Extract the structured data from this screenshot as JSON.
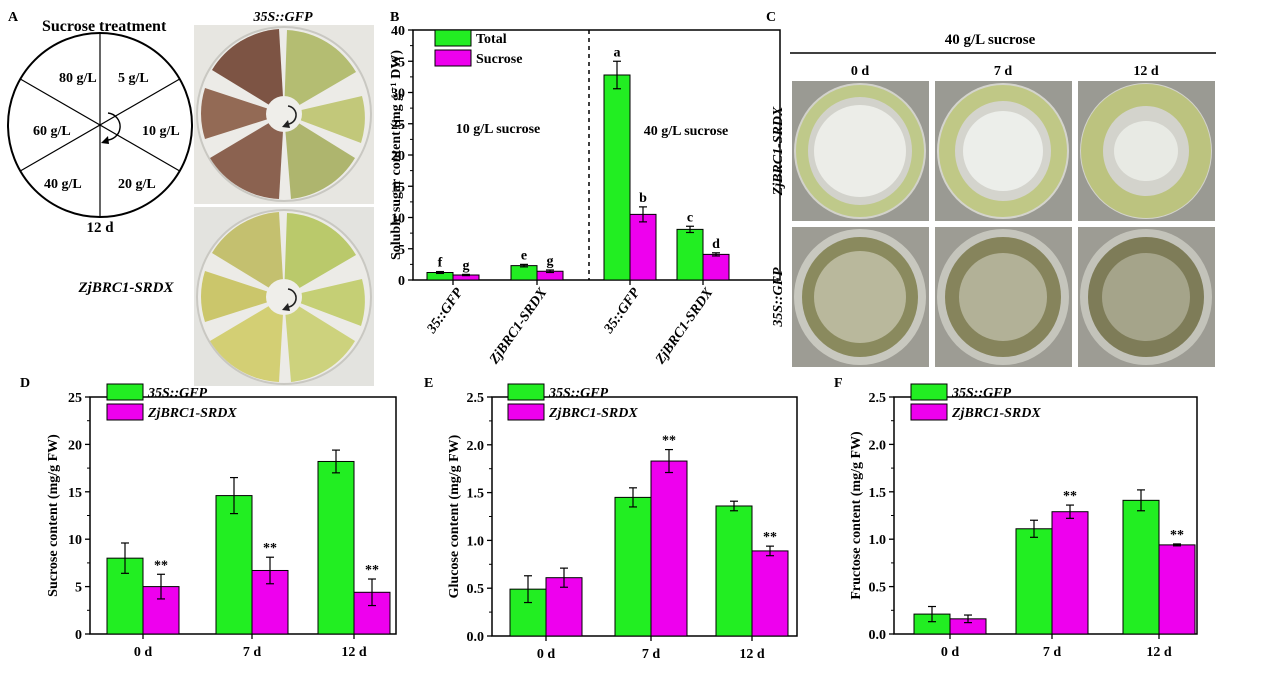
{
  "colors": {
    "green": "#22ee22",
    "magenta": "#ee00ee",
    "axis": "#000000",
    "dish_light": "#f2f2ee",
    "callus_yellow": "#c8cf7a",
    "callus_brown": "#8a5a46",
    "culture_dark": "#7e7c58"
  },
  "panel_a": {
    "letter": "A",
    "title": "Sucrose treatment",
    "wheel_labels": [
      "80 g/L",
      "5 g/L",
      "60 g/L",
      "10 g/L",
      "40 g/L",
      "20 g/L"
    ],
    "wheel_caption": "12 d",
    "photo_top_label": "35S::GFP",
    "photo_bottom_label": "ZjBRC1-SRDX"
  },
  "panel_c": {
    "letter": "C",
    "header": "40 g/L sucrose",
    "columns": [
      "0 d",
      "7 d",
      "12 d"
    ],
    "rows": [
      "ZjBRC1-SRDX",
      "35S::GFP"
    ]
  },
  "chart_data": [
    {
      "id": "B",
      "letter": "B",
      "type": "bar",
      "ylabel": "Soluble sugar content (mg g⁻¹ DW)",
      "ylim": [
        0,
        40
      ],
      "yticks": [
        "0",
        "5",
        "10",
        "15",
        "20",
        "25",
        "30",
        "35",
        "40"
      ],
      "categories": [
        "35::GFP",
        "ZjBRC1-SRDX",
        "35::GFP",
        "ZjBRC1-SRDX"
      ],
      "group_labels": [
        "10 g/L sucrose",
        "40 g/L sucrose"
      ],
      "legend": [
        "Total",
        "Sucrose"
      ],
      "legend_position": "top-left",
      "series": [
        {
          "name": "Total",
          "values": [
            1.2,
            2.3,
            32.8,
            8.1
          ],
          "errors": [
            0.15,
            0.2,
            2.2,
            0.5
          ],
          "letters": [
            "f",
            "e",
            "a",
            "c"
          ]
        },
        {
          "name": "Sucrose",
          "values": [
            0.8,
            1.4,
            10.5,
            4.1
          ],
          "errors": [
            0.1,
            0.2,
            1.2,
            0.25
          ],
          "letters": [
            "g",
            "g",
            "b",
            "d"
          ]
        }
      ]
    },
    {
      "id": "D",
      "letter": "D",
      "type": "bar",
      "ylabel": "Sucrose content (mg/g FW)",
      "ylim": [
        0,
        25
      ],
      "yticks": [
        "0",
        "5",
        "10",
        "15",
        "20",
        "25"
      ],
      "categories": [
        "0 d",
        "7 d",
        "12 d"
      ],
      "legend": [
        "35S::GFP",
        "ZjBRC1-SRDX"
      ],
      "legend_position": "top-left",
      "series": [
        {
          "name": "35S::GFP",
          "values": [
            8.0,
            14.6,
            18.2
          ],
          "errors": [
            1.6,
            1.9,
            1.2
          ],
          "marks": [
            "",
            "",
            ""
          ]
        },
        {
          "name": "ZjBRC1-SRDX",
          "values": [
            5.0,
            6.7,
            4.4
          ],
          "errors": [
            1.3,
            1.4,
            1.4
          ],
          "marks": [
            "**",
            "**",
            "**"
          ]
        }
      ]
    },
    {
      "id": "E",
      "letter": "E",
      "type": "bar",
      "ylabel": "Glucose content (mg/g FW)",
      "ylim": [
        0,
        2.5
      ],
      "yticks": [
        "0.0",
        "0.5",
        "1.0",
        "1.5",
        "2.0",
        "2.5"
      ],
      "categories": [
        "0 d",
        "7 d",
        "12 d"
      ],
      "legend": [
        "35S::GFP",
        "ZjBRC1-SRDX"
      ],
      "legend_position": "top-left",
      "series": [
        {
          "name": "35S::GFP",
          "values": [
            0.49,
            1.45,
            1.36
          ],
          "errors": [
            0.14,
            0.1,
            0.05
          ],
          "marks": [
            "",
            "",
            ""
          ]
        },
        {
          "name": "ZjBRC1-SRDX",
          "values": [
            0.61,
            1.83,
            0.89
          ],
          "errors": [
            0.1,
            0.12,
            0.05
          ],
          "marks": [
            "",
            "**",
            "**"
          ]
        }
      ]
    },
    {
      "id": "F",
      "letter": "F",
      "type": "bar",
      "ylabel": "Fructose content (mg/g FW)",
      "ylim": [
        0,
        2.5
      ],
      "yticks": [
        "0.0",
        "0.5",
        "1.0",
        "1.5",
        "2.0",
        "2.5"
      ],
      "categories": [
        "0 d",
        "7 d",
        "12 d"
      ],
      "legend": [
        "35S::GFP",
        "ZjBRC1-SRDX"
      ],
      "legend_position": "top-left",
      "series": [
        {
          "name": "35S::GFP",
          "values": [
            0.21,
            1.11,
            1.41
          ],
          "errors": [
            0.08,
            0.09,
            0.11
          ],
          "marks": [
            "",
            "",
            ""
          ]
        },
        {
          "name": "ZjBRC1-SRDX",
          "values": [
            0.16,
            1.29,
            0.94
          ],
          "errors": [
            0.04,
            0.07,
            0.01
          ],
          "marks": [
            "",
            "**",
            "**"
          ]
        }
      ]
    }
  ]
}
